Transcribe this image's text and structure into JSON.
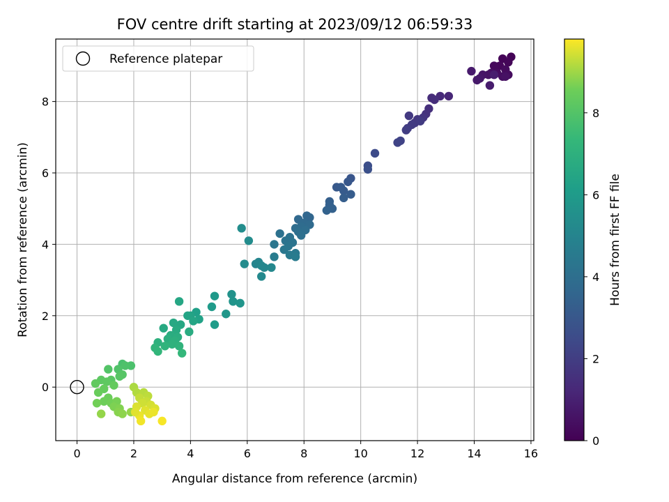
{
  "chart_data": {
    "type": "scatter",
    "title": "FOV centre drift starting at 2023/09/12 06:59:33",
    "xlabel": "Angular distance from reference (arcmin)",
    "ylabel": "Rotation from reference (arcmin)",
    "xlim": [
      -0.75,
      16.1
    ],
    "ylim": [
      -1.5,
      9.75
    ],
    "xticks": [
      0,
      2,
      4,
      6,
      8,
      10,
      12,
      14,
      16
    ],
    "yticks": [
      0,
      2,
      4,
      6,
      8
    ],
    "grid": true,
    "legend": {
      "position": "top-left",
      "entries": [
        "Reference platepar"
      ]
    },
    "reference_point": {
      "x": 0,
      "y": 0,
      "label": "Reference platepar",
      "marker": "open-circle"
    },
    "colorbar": {
      "label": "Hours from first FF file",
      "colormap": "viridis",
      "range": [
        0,
        9.8
      ],
      "ticks": [
        0,
        2,
        4,
        6,
        8
      ]
    },
    "color_value": "hours",
    "points": [
      {
        "x": 15.0,
        "y": 9.2,
        "hours": 0.1
      },
      {
        "x": 15.3,
        "y": 9.25,
        "hours": 0.1
      },
      {
        "x": 15.2,
        "y": 9.1,
        "hours": 0.15
      },
      {
        "x": 14.9,
        "y": 9.0,
        "hours": 0.2
      },
      {
        "x": 14.7,
        "y": 9.0,
        "hours": 0.25
      },
      {
        "x": 15.1,
        "y": 8.9,
        "hours": 0.3
      },
      {
        "x": 14.8,
        "y": 8.8,
        "hours": 0.35
      },
      {
        "x": 15.2,
        "y": 8.75,
        "hours": 0.35
      },
      {
        "x": 15.0,
        "y": 8.7,
        "hours": 0.4
      },
      {
        "x": 14.6,
        "y": 8.8,
        "hours": 0.45
      },
      {
        "x": 15.1,
        "y": 8.7,
        "hours": 0.5
      },
      {
        "x": 14.5,
        "y": 8.75,
        "hours": 0.55
      },
      {
        "x": 14.3,
        "y": 8.75,
        "hours": 0.6
      },
      {
        "x": 14.2,
        "y": 8.65,
        "hours": 0.7
      },
      {
        "x": 14.1,
        "y": 8.6,
        "hours": 0.75
      },
      {
        "x": 13.9,
        "y": 8.85,
        "hours": 0.8
      },
      {
        "x": 14.55,
        "y": 8.45,
        "hours": 0.85
      },
      {
        "x": 14.7,
        "y": 8.75,
        "hours": 0.9
      },
      {
        "x": 13.1,
        "y": 8.15,
        "hours": 1.2
      },
      {
        "x": 12.8,
        "y": 8.15,
        "hours": 1.3
      },
      {
        "x": 12.5,
        "y": 8.1,
        "hours": 1.4
      },
      {
        "x": 12.6,
        "y": 8.05,
        "hours": 1.45
      },
      {
        "x": 12.4,
        "y": 7.8,
        "hours": 1.5
      },
      {
        "x": 12.3,
        "y": 7.65,
        "hours": 1.6
      },
      {
        "x": 12.2,
        "y": 7.55,
        "hours": 1.7
      },
      {
        "x": 12.0,
        "y": 7.5,
        "hours": 1.75
      },
      {
        "x": 11.9,
        "y": 7.4,
        "hours": 1.8
      },
      {
        "x": 11.7,
        "y": 7.6,
        "hours": 1.85
      },
      {
        "x": 11.8,
        "y": 7.35,
        "hours": 1.9
      },
      {
        "x": 11.65,
        "y": 7.25,
        "hours": 1.95
      },
      {
        "x": 11.6,
        "y": 7.2,
        "hours": 2.0
      },
      {
        "x": 12.1,
        "y": 7.45,
        "hours": 1.9
      },
      {
        "x": 11.4,
        "y": 6.9,
        "hours": 2.2
      },
      {
        "x": 11.3,
        "y": 6.85,
        "hours": 2.25
      },
      {
        "x": 10.5,
        "y": 6.55,
        "hours": 2.5
      },
      {
        "x": 10.25,
        "y": 6.2,
        "hours": 2.6
      },
      {
        "x": 10.25,
        "y": 6.1,
        "hours": 2.7
      },
      {
        "x": 9.65,
        "y": 5.85,
        "hours": 2.9
      },
      {
        "x": 9.55,
        "y": 5.75,
        "hours": 3.0
      },
      {
        "x": 9.15,
        "y": 5.6,
        "hours": 3.05
      },
      {
        "x": 9.3,
        "y": 5.6,
        "hours": 3.1
      },
      {
        "x": 9.4,
        "y": 5.5,
        "hours": 3.15
      },
      {
        "x": 9.65,
        "y": 5.4,
        "hours": 3.2
      },
      {
        "x": 9.4,
        "y": 5.3,
        "hours": 3.25
      },
      {
        "x": 8.9,
        "y": 5.2,
        "hours": 3.3
      },
      {
        "x": 8.9,
        "y": 5.1,
        "hours": 3.35
      },
      {
        "x": 9.0,
        "y": 5.0,
        "hours": 3.4
      },
      {
        "x": 8.8,
        "y": 4.95,
        "hours": 3.45
      },
      {
        "x": 8.2,
        "y": 4.75,
        "hours": 3.6
      },
      {
        "x": 8.1,
        "y": 4.8,
        "hours": 3.65
      },
      {
        "x": 7.8,
        "y": 4.7,
        "hours": 3.7
      },
      {
        "x": 8.0,
        "y": 4.6,
        "hours": 3.75
      },
      {
        "x": 8.2,
        "y": 4.55,
        "hours": 3.8
      },
      {
        "x": 7.9,
        "y": 4.5,
        "hours": 3.85
      },
      {
        "x": 7.7,
        "y": 4.45,
        "hours": 3.9
      },
      {
        "x": 8.05,
        "y": 4.4,
        "hours": 3.95
      },
      {
        "x": 7.8,
        "y": 4.35,
        "hours": 4.0
      },
      {
        "x": 7.15,
        "y": 4.3,
        "hours": 4.1
      },
      {
        "x": 7.9,
        "y": 4.25,
        "hours": 4.05
      },
      {
        "x": 7.5,
        "y": 4.2,
        "hours": 4.15
      },
      {
        "x": 7.35,
        "y": 4.1,
        "hours": 4.2
      },
      {
        "x": 7.6,
        "y": 4.05,
        "hours": 4.25
      },
      {
        "x": 7.45,
        "y": 3.95,
        "hours": 4.3
      },
      {
        "x": 6.95,
        "y": 4.0,
        "hours": 4.35
      },
      {
        "x": 7.3,
        "y": 3.85,
        "hours": 4.4
      },
      {
        "x": 7.7,
        "y": 3.75,
        "hours": 4.45
      },
      {
        "x": 7.5,
        "y": 3.7,
        "hours": 4.5
      },
      {
        "x": 7.7,
        "y": 3.65,
        "hours": 4.55
      },
      {
        "x": 6.95,
        "y": 3.65,
        "hours": 4.6
      },
      {
        "x": 6.3,
        "y": 3.45,
        "hours": 5.0
      },
      {
        "x": 6.4,
        "y": 3.5,
        "hours": 5.05
      },
      {
        "x": 6.6,
        "y": 3.35,
        "hours": 5.1
      },
      {
        "x": 6.85,
        "y": 3.35,
        "hours": 5.15
      },
      {
        "x": 6.5,
        "y": 3.4,
        "hours": 5.1
      },
      {
        "x": 6.5,
        "y": 3.1,
        "hours": 5.2
      },
      {
        "x": 5.9,
        "y": 3.45,
        "hours": 5.3
      },
      {
        "x": 5.8,
        "y": 4.45,
        "hours": 5.4
      },
      {
        "x": 6.05,
        "y": 4.1,
        "hours": 5.35
      },
      {
        "x": 5.45,
        "y": 2.6,
        "hours": 5.6
      },
      {
        "x": 5.5,
        "y": 2.4,
        "hours": 5.7
      },
      {
        "x": 5.75,
        "y": 2.35,
        "hours": 5.75
      },
      {
        "x": 5.25,
        "y": 2.05,
        "hours": 5.8
      },
      {
        "x": 4.85,
        "y": 2.55,
        "hours": 5.9
      },
      {
        "x": 4.75,
        "y": 2.25,
        "hours": 6.0
      },
      {
        "x": 4.85,
        "y": 1.75,
        "hours": 6.05
      },
      {
        "x": 4.2,
        "y": 2.1,
        "hours": 6.2
      },
      {
        "x": 4.3,
        "y": 1.9,
        "hours": 6.3
      },
      {
        "x": 4.0,
        "y": 2.0,
        "hours": 6.35
      },
      {
        "x": 3.9,
        "y": 2.0,
        "hours": 6.4
      },
      {
        "x": 4.1,
        "y": 1.85,
        "hours": 6.45
      },
      {
        "x": 3.6,
        "y": 2.4,
        "hours": 6.5
      },
      {
        "x": 3.65,
        "y": 1.75,
        "hours": 6.55
      },
      {
        "x": 3.4,
        "y": 1.8,
        "hours": 6.6
      },
      {
        "x": 3.05,
        "y": 1.65,
        "hours": 6.65
      },
      {
        "x": 3.5,
        "y": 1.6,
        "hours": 6.7
      },
      {
        "x": 3.95,
        "y": 1.55,
        "hours": 6.75
      },
      {
        "x": 3.3,
        "y": 1.45,
        "hours": 6.8
      },
      {
        "x": 3.55,
        "y": 1.4,
        "hours": 6.85
      },
      {
        "x": 3.2,
        "y": 1.35,
        "hours": 6.9
      },
      {
        "x": 3.45,
        "y": 1.3,
        "hours": 6.95
      },
      {
        "x": 2.85,
        "y": 1.25,
        "hours": 7.0
      },
      {
        "x": 3.35,
        "y": 1.2,
        "hours": 7.05
      },
      {
        "x": 3.6,
        "y": 1.15,
        "hours": 7.1
      },
      {
        "x": 3.1,
        "y": 1.15,
        "hours": 7.15
      },
      {
        "x": 2.75,
        "y": 1.1,
        "hours": 7.2
      },
      {
        "x": 2.85,
        "y": 1.0,
        "hours": 7.25
      },
      {
        "x": 3.7,
        "y": 0.95,
        "hours": 7.3
      },
      {
        "x": 1.6,
        "y": 0.65,
        "hours": 7.8
      },
      {
        "x": 1.9,
        "y": 0.6,
        "hours": 7.85
      },
      {
        "x": 1.7,
        "y": 0.6,
        "hours": 7.9
      },
      {
        "x": 1.45,
        "y": 0.5,
        "hours": 7.95
      },
      {
        "x": 1.1,
        "y": 0.5,
        "hours": 8.0
      },
      {
        "x": 1.6,
        "y": 0.35,
        "hours": 8.05
      },
      {
        "x": 1.5,
        "y": 0.3,
        "hours": 8.1
      },
      {
        "x": 1.2,
        "y": 0.2,
        "hours": 8.15
      },
      {
        "x": 0.85,
        "y": 0.2,
        "hours": 8.2
      },
      {
        "x": 1.05,
        "y": 0.15,
        "hours": 8.25
      },
      {
        "x": 0.65,
        "y": 0.1,
        "hours": 8.3
      },
      {
        "x": 1.3,
        "y": 0.05,
        "hours": 8.35
      },
      {
        "x": 0.95,
        "y": -0.05,
        "hours": 8.4
      },
      {
        "x": 0.75,
        "y": -0.15,
        "hours": 8.45
      },
      {
        "x": 1.1,
        "y": -0.3,
        "hours": 8.5
      },
      {
        "x": 0.95,
        "y": -0.4,
        "hours": 8.55
      },
      {
        "x": 0.7,
        "y": -0.45,
        "hours": 8.6
      },
      {
        "x": 1.2,
        "y": -0.45,
        "hours": 8.6
      },
      {
        "x": 1.4,
        "y": -0.4,
        "hours": 8.65
      },
      {
        "x": 1.3,
        "y": -0.55,
        "hours": 8.7
      },
      {
        "x": 1.5,
        "y": -0.6,
        "hours": 8.75
      },
      {
        "x": 1.45,
        "y": -0.7,
        "hours": 8.8
      },
      {
        "x": 1.6,
        "y": -0.75,
        "hours": 8.85
      },
      {
        "x": 1.9,
        "y": -0.7,
        "hours": 8.9
      },
      {
        "x": 0.85,
        "y": -0.75,
        "hours": 8.9
      },
      {
        "x": 2.0,
        "y": 0.0,
        "hours": 9.1
      },
      {
        "x": 2.1,
        "y": -0.15,
        "hours": 9.15
      },
      {
        "x": 2.35,
        "y": -0.15,
        "hours": 9.2
      },
      {
        "x": 2.5,
        "y": -0.25,
        "hours": 9.25
      },
      {
        "x": 2.2,
        "y": -0.3,
        "hours": 9.3
      },
      {
        "x": 2.45,
        "y": -0.4,
        "hours": 9.35
      },
      {
        "x": 2.3,
        "y": -0.45,
        "hours": 9.4
      },
      {
        "x": 2.6,
        "y": -0.5,
        "hours": 9.45
      },
      {
        "x": 2.1,
        "y": -0.55,
        "hours": 9.5
      },
      {
        "x": 2.75,
        "y": -0.6,
        "hours": 9.5
      },
      {
        "x": 2.4,
        "y": -0.65,
        "hours": 9.55
      },
      {
        "x": 2.55,
        "y": -0.75,
        "hours": 9.6
      },
      {
        "x": 2.2,
        "y": -0.8,
        "hours": 9.65
      },
      {
        "x": 2.7,
        "y": -0.7,
        "hours": 9.65
      },
      {
        "x": 2.25,
        "y": -0.95,
        "hours": 9.7
      },
      {
        "x": 3.0,
        "y": -0.95,
        "hours": 9.75
      },
      {
        "x": 2.05,
        "y": -0.7,
        "hours": 9.55
      }
    ]
  }
}
